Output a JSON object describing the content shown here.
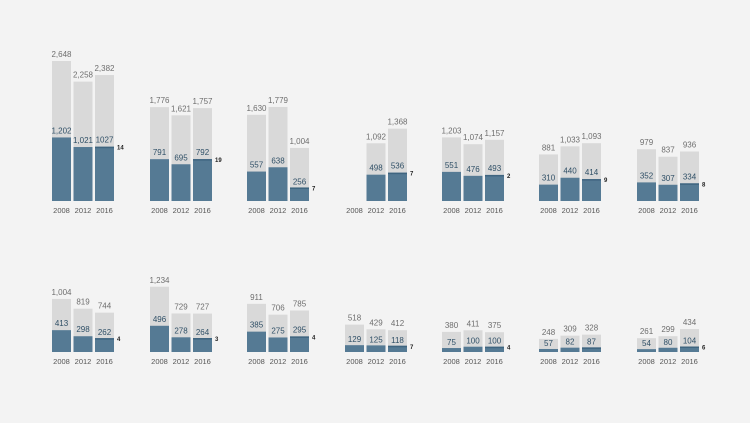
{
  "colors": {
    "background": "#f3f3f3",
    "total_bar": "#d9d9d9",
    "subset_bar": "#557a94",
    "subset_bar_dark": "#3f6580"
  },
  "chart_data": {
    "type": "bar",
    "description_kind": "small-multiples, overlaid bars (total vs subset) per year",
    "years": [
      "2008",
      "2012",
      "2016"
    ],
    "scale_max": 2648,
    "panels": [
      {
        "row": 1,
        "col": 1,
        "totals": [
          2648,
          2258,
          2382
        ],
        "subset": [
          1202,
          1021,
          1027
        ],
        "total_labels": [
          "2,648",
          "2,258",
          "2,382"
        ],
        "subset_labels": [
          "1,202",
          "1,021",
          "1027"
        ],
        "extra": "14"
      },
      {
        "row": 1,
        "col": 2,
        "totals": [
          1776,
          1621,
          1757
        ],
        "subset": [
          791,
          695,
          792
        ],
        "total_labels": [
          "1,776",
          "1,621",
          "1,757"
        ],
        "subset_labels": [
          "791",
          "695",
          "792"
        ],
        "extra": "19"
      },
      {
        "row": 1,
        "col": 3,
        "totals": [
          1630,
          1779,
          1004
        ],
        "subset": [
          557,
          638,
          256
        ],
        "total_labels": [
          "1,630",
          "1,779",
          "1,004"
        ],
        "subset_labels": [
          "557",
          "638",
          "256"
        ],
        "extra": "7"
      },
      {
        "row": 1,
        "col": 4,
        "totals": [
          null,
          1092,
          1368
        ],
        "subset": [
          null,
          498,
          536
        ],
        "total_labels": [
          "",
          "1,092",
          "1,368"
        ],
        "subset_labels": [
          "",
          "498",
          "536"
        ],
        "extra": "7"
      },
      {
        "row": 1,
        "col": 5,
        "totals": [
          1203,
          1074,
          1157
        ],
        "subset": [
          551,
          476,
          493
        ],
        "total_labels": [
          "1,203",
          "1,074",
          "1,157"
        ],
        "subset_labels": [
          "551",
          "476",
          "493"
        ],
        "extra": "2"
      },
      {
        "row": 1,
        "col": 6,
        "totals": [
          881,
          1033,
          1093
        ],
        "subset": [
          310,
          440,
          414
        ],
        "total_labels": [
          "881",
          "1,033",
          "1,093"
        ],
        "subset_labels": [
          "310",
          "440",
          "414"
        ],
        "extra": "9"
      },
      {
        "row": 1,
        "col": 7,
        "totals": [
          979,
          837,
          936
        ],
        "subset": [
          352,
          307,
          334
        ],
        "total_labels": [
          "979",
          "837",
          "936"
        ],
        "subset_labels": [
          "352",
          "307",
          "334"
        ],
        "extra": "8"
      },
      {
        "row": 2,
        "col": 1,
        "totals": [
          1004,
          819,
          744
        ],
        "subset": [
          413,
          298,
          262
        ],
        "total_labels": [
          "1,004",
          "819",
          "744"
        ],
        "subset_labels": [
          "413",
          "298",
          "262"
        ],
        "extra": "4"
      },
      {
        "row": 2,
        "col": 2,
        "totals": [
          1234,
          729,
          727
        ],
        "subset": [
          496,
          278,
          264
        ],
        "total_labels": [
          "1,234",
          "729",
          "727"
        ],
        "subset_labels": [
          "496",
          "278",
          "264"
        ],
        "extra": "3"
      },
      {
        "row": 2,
        "col": 3,
        "totals": [
          911,
          706,
          785
        ],
        "subset": [
          385,
          275,
          295
        ],
        "total_labels": [
          "911",
          "706",
          "785"
        ],
        "subset_labels": [
          "385",
          "275",
          "295"
        ],
        "extra": "4"
      },
      {
        "row": 2,
        "col": 4,
        "totals": [
          518,
          429,
          412
        ],
        "subset": [
          129,
          125,
          118
        ],
        "total_labels": [
          "518",
          "429",
          "412"
        ],
        "subset_labels": [
          "129",
          "125",
          "118"
        ],
        "extra": "7"
      },
      {
        "row": 2,
        "col": 5,
        "totals": [
          380,
          411,
          375
        ],
        "subset": [
          75,
          100,
          100
        ],
        "total_labels": [
          "380",
          "411",
          "375"
        ],
        "subset_labels": [
          "75",
          "100",
          "100"
        ],
        "extra": "4"
      },
      {
        "row": 2,
        "col": 6,
        "totals": [
          248,
          309,
          328
        ],
        "subset": [
          57,
          82,
          87
        ],
        "total_labels": [
          "248",
          "309",
          "328"
        ],
        "subset_labels": [
          "57",
          "82",
          "87"
        ],
        "extra": ""
      },
      {
        "row": 2,
        "col": 7,
        "totals": [
          261,
          299,
          434
        ],
        "subset": [
          54,
          80,
          104
        ],
        "total_labels": [
          "261",
          "299",
          "434"
        ],
        "subset_labels": [
          "54",
          "80",
          "104"
        ],
        "extra": "6"
      }
    ]
  }
}
